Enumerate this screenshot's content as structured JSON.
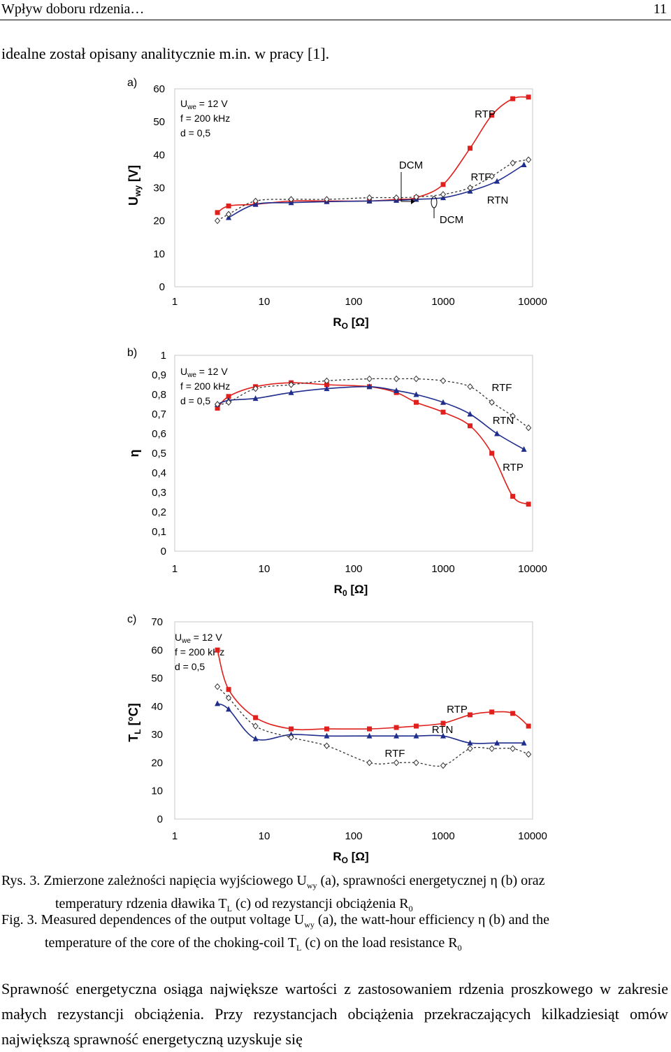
{
  "header": {
    "title": "Wpływ doboru rdzenia…",
    "page_number": "11"
  },
  "intro_text": "idealne został opisany analitycznie m.in. w pracy [1].",
  "caption": {
    "pl_line1": "Rys. 3. Zmierzone zależności napięcia wyjściowego U",
    "pl_sub1": "wy",
    "pl_line1b": " (a), sprawności energetycznej η (b) oraz",
    "pl_line2": "temperatury rdzenia dławika T",
    "pl_sub2": "L",
    "pl_line2b": " (c) od rezystancji obciążenia R",
    "pl_sub3": "0",
    "en_line1": "Fig. 3.  Measured dependences of the output voltage U",
    "en_sub1": "wy",
    "en_line1b": " (a), the watt-hour efficiency η (b) and the",
    "en_line2": "temperature of the core of the choking-coil T",
    "en_sub2": "L",
    "en_line2b": " (c) on the load resistance R",
    "en_sub3": "0"
  },
  "paragraph": "Sprawność energetyczna osiąga największe wartości z zastosowaniem rdzenia proszkowego w zakresie małych rezystancji obciążenia. Przy rezystancjach obciążenia przekraczających kilkadziesiąt omów największą sprawność energetyczną uzyskuje się",
  "colors": {
    "rtp": "#e0201c",
    "rtn": "#1f2d8c",
    "rtf": "#333333"
  },
  "chart_data": [
    {
      "type": "line",
      "panel_label": "a)",
      "ylabel": "U",
      "ylabel_sub": "wy",
      "ylabel_unit": " [V]",
      "xlabel": "R",
      "xlabel_sub": "O",
      "xlabel_unit": " [Ω]",
      "xscale": "log",
      "xlim": [
        1,
        10000
      ],
      "ylim": [
        0,
        60
      ],
      "x_ticks": [
        "1",
        "10",
        "100",
        "1000",
        "10000"
      ],
      "y_ticks": [
        "60",
        "50",
        "40",
        "30",
        "20",
        "10",
        "0"
      ],
      "conditions": [
        "U",
        "we",
        " = 12 V",
        "f = 200 kHz",
        "d = 0,5"
      ],
      "annotations": [
        "DCM",
        "DCM"
      ],
      "series": [
        {
          "name": "RTP",
          "color": "#e0201c",
          "marker": "square",
          "dashed": false,
          "x": [
            3,
            4,
            8,
            20,
            50,
            150,
            300,
            500,
            1000,
            2000,
            3500,
            6000,
            9000
          ],
          "y": [
            22.5,
            24.5,
            25,
            26,
            26,
            26,
            26.5,
            27,
            31,
            42,
            52,
            57,
            57.5
          ]
        },
        {
          "name": "RTN",
          "color": "#1f2d8c",
          "marker": "triangle",
          "dashed": false,
          "x": [
            4,
            8,
            20,
            50,
            150,
            300,
            500,
            1000,
            2000,
            4000,
            8000
          ],
          "y": [
            21,
            25,
            25.5,
            25.8,
            26,
            26.2,
            26.5,
            27,
            29,
            32,
            37
          ]
        },
        {
          "name": "RTF",
          "color": "#333333",
          "marker": "diamond",
          "dashed": true,
          "x": [
            3,
            4,
            8,
            20,
            50,
            150,
            300,
            500,
            1000,
            2000,
            3500,
            6000,
            9000
          ],
          "y": [
            20,
            22,
            26,
            26.5,
            26.5,
            27,
            27,
            27.2,
            28,
            30,
            33.5,
            37.5,
            38.5
          ]
        }
      ]
    },
    {
      "type": "line",
      "panel_label": "b)",
      "ylabel": "η",
      "xlabel": "R",
      "xlabel_sub": "0",
      "xlabel_unit": " [Ω]",
      "xscale": "log",
      "xlim": [
        1,
        10000
      ],
      "ylim": [
        0,
        1
      ],
      "x_ticks": [
        "1",
        "10",
        "100",
        "1000",
        "10000"
      ],
      "y_ticks": [
        "1",
        "0,9",
        "0,8",
        "0,7",
        "0,6",
        "0,5",
        "0,4",
        "0,3",
        "0,2",
        "0,1",
        "0"
      ],
      "conditions": [
        "U",
        "we",
        " = 12 V",
        "f = 200 kHz",
        "d = 0,5"
      ],
      "series": [
        {
          "name": "RTP",
          "color": "#e0201c",
          "marker": "square",
          "dashed": false,
          "x": [
            3,
            4,
            8,
            20,
            50,
            150,
            300,
            500,
            1000,
            2000,
            3500,
            6000,
            9000
          ],
          "y": [
            0.73,
            0.79,
            0.84,
            0.86,
            0.85,
            0.84,
            0.81,
            0.76,
            0.71,
            0.64,
            0.5,
            0.28,
            0.24
          ]
        },
        {
          "name": "RTN",
          "color": "#1f2d8c",
          "marker": "triangle",
          "dashed": false,
          "x": [
            3,
            4,
            8,
            20,
            50,
            150,
            300,
            500,
            1000,
            2000,
            4000,
            8000
          ],
          "y": [
            0.75,
            0.77,
            0.78,
            0.81,
            0.83,
            0.84,
            0.82,
            0.8,
            0.76,
            0.7,
            0.6,
            0.52
          ]
        },
        {
          "name": "RTF",
          "color": "#333333",
          "marker": "diamond",
          "dashed": true,
          "x": [
            3,
            4,
            8,
            20,
            50,
            150,
            300,
            500,
            1000,
            2000,
            3500,
            6000,
            9000
          ],
          "y": [
            0.75,
            0.76,
            0.83,
            0.85,
            0.87,
            0.88,
            0.88,
            0.88,
            0.87,
            0.84,
            0.76,
            0.69,
            0.63
          ]
        }
      ]
    },
    {
      "type": "line",
      "panel_label": "c)",
      "ylabel": "T",
      "ylabel_sub": "L",
      "ylabel_unit": " [°C]",
      "xlabel": "R",
      "xlabel_sub": "O",
      "xlabel_unit": " [Ω]",
      "xscale": "log",
      "xlim": [
        1,
        10000
      ],
      "ylim": [
        0,
        70
      ],
      "x_ticks": [
        "1",
        "10",
        "100",
        "1000",
        "10000"
      ],
      "y_ticks": [
        "70",
        "60",
        "50",
        "40",
        "30",
        "20",
        "10",
        "0"
      ],
      "conditions": [
        "U",
        "we",
        " = 12 V",
        "f = 200 kHz",
        "d = 0,5"
      ],
      "series": [
        {
          "name": "RTP",
          "color": "#e0201c",
          "marker": "square",
          "dashed": false,
          "x": [
            3,
            4,
            8,
            20,
            50,
            150,
            300,
            500,
            1000,
            2000,
            3500,
            6000,
            9000
          ],
          "y": [
            60,
            46,
            36,
            32,
            32,
            32,
            32.5,
            33,
            34,
            37,
            38,
            37.5,
            33
          ]
        },
        {
          "name": "RTN",
          "color": "#1f2d8c",
          "marker": "triangle",
          "dashed": false,
          "x": [
            3,
            4,
            8,
            20,
            50,
            150,
            300,
            500,
            1000,
            2000,
            4000,
            8000
          ],
          "y": [
            41,
            39,
            28.5,
            30,
            29.5,
            29.5,
            29.5,
            29.5,
            29.5,
            27,
            27,
            27
          ]
        },
        {
          "name": "RTF",
          "color": "#333333",
          "marker": "diamond",
          "dashed": true,
          "x": [
            3,
            4,
            8,
            20,
            50,
            150,
            300,
            500,
            1000,
            2000,
            3500,
            6000,
            9000
          ],
          "y": [
            47,
            43,
            33,
            29,
            26,
            20,
            20,
            20,
            19,
            25,
            25,
            25,
            23
          ]
        }
      ]
    }
  ],
  "series_labels": {
    "a": [
      "RTP",
      "RTF",
      "RTN"
    ],
    "b": [
      "RTF",
      "RTN",
      "RTP"
    ],
    "c": [
      "RTP",
      "RTN",
      "RTF"
    ]
  }
}
